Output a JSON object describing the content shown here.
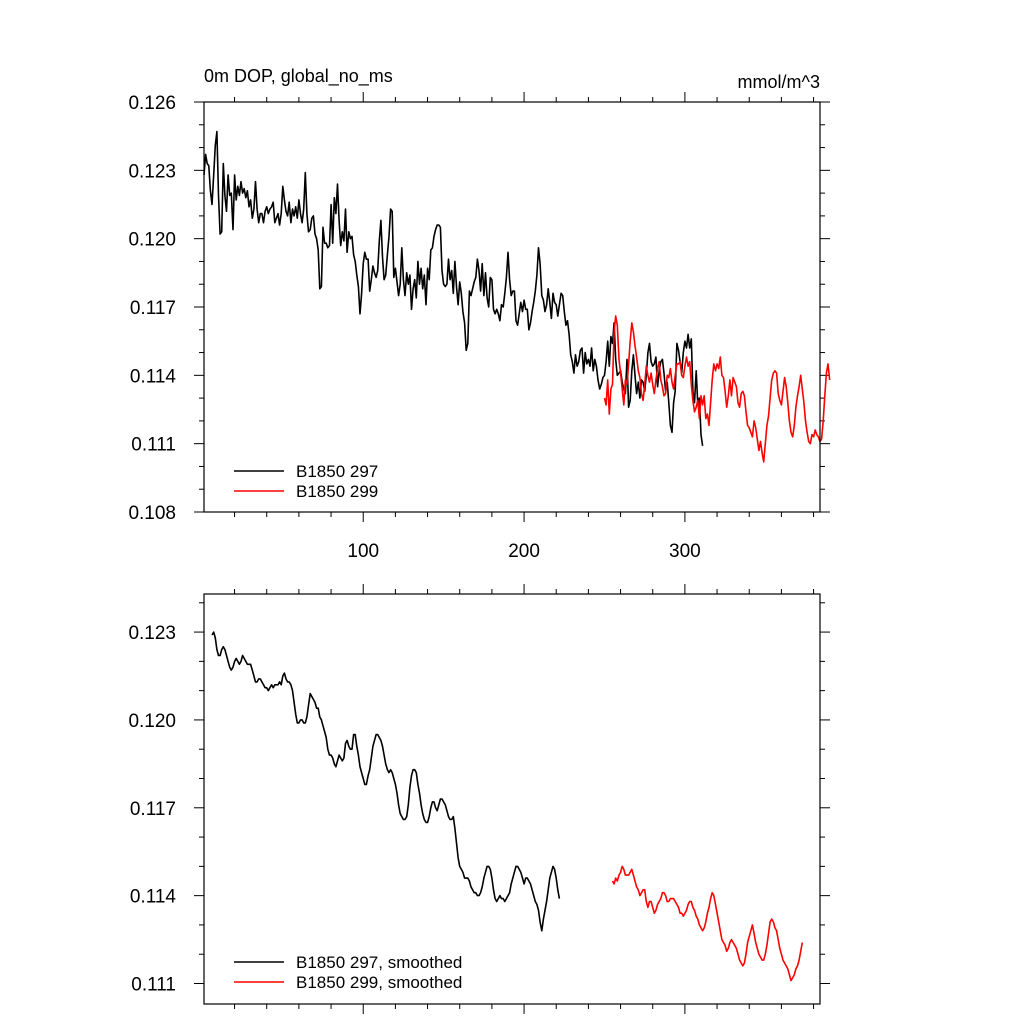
{
  "colors": {
    "run297": "#000000",
    "run299": "#ff0000",
    "axis": "#000000",
    "background": "#ffffff"
  },
  "chart_data": [
    {
      "type": "line",
      "id": "top",
      "title": "0m DOP, global_no_ms",
      "units": "mmol/m^3",
      "xlim": [
        1,
        384
      ],
      "ylim": [
        0.108,
        0.126
      ],
      "yticks": [
        "0.126",
        "0.123",
        "0.120",
        "0.117",
        "0.114",
        "0.111",
        "0.108"
      ],
      "ytick_values": [
        0.126,
        0.123,
        0.12,
        0.117,
        0.114,
        0.111,
        0.108
      ],
      "xticks": [
        "100",
        "200",
        "300"
      ],
      "xtick_values": [
        100,
        200,
        300
      ],
      "grid": false,
      "legend_position": "bottom-left",
      "series": [
        {
          "name": "B1850 297",
          "color": "#000000",
          "x_start": 1,
          "values": [
            0.1228,
            0.1237,
            0.1233,
            0.1232,
            0.1221,
            0.1215,
            0.1228,
            0.1241,
            0.1247,
            0.1219,
            0.1202,
            0.1203,
            0.1233,
            0.1219,
            0.1212,
            0.1228,
            0.1219,
            0.122,
            0.1204,
            0.1228,
            0.1217,
            0.1223,
            0.1219,
            0.1225,
            0.122,
            0.1222,
            0.1218,
            0.1221,
            0.1214,
            0.1217,
            0.1209,
            0.1213,
            0.1225,
            0.1213,
            0.1207,
            0.1211,
            0.1211,
            0.1207,
            0.1212,
            0.1214,
            0.1211,
            0.1213,
            0.1214,
            0.1216,
            0.1207,
            0.1209,
            0.1211,
            0.1206,
            0.1211,
            0.1223,
            0.1217,
            0.1212,
            0.121,
            0.1216,
            0.1207,
            0.1213,
            0.121,
            0.1214,
            0.1209,
            0.1217,
            0.1211,
            0.1207,
            0.1213,
            0.1229,
            0.1211,
            0.1203,
            0.1204,
            0.1209,
            0.121,
            0.1202,
            0.12,
            0.1195,
            0.1178,
            0.1179,
            0.1205,
            0.1198,
            0.1198,
            0.1196,
            0.1197,
            0.1215,
            0.1198,
            0.1218,
            0.1211,
            0.1224,
            0.1208,
            0.1197,
            0.1203,
            0.1199,
            0.1213,
            0.1194,
            0.1203,
            0.12,
            0.1201,
            0.1193,
            0.119,
            0.1184,
            0.1179,
            0.1167,
            0.1176,
            0.1189,
            0.1194,
            0.1191,
            0.1191,
            0.1177,
            0.1182,
            0.1188,
            0.1185,
            0.1183,
            0.1186,
            0.1199,
            0.1208,
            0.1192,
            0.1182,
            0.1184,
            0.1193,
            0.1201,
            0.1213,
            0.1212,
            0.1183,
            0.1187,
            0.1181,
            0.1175,
            0.118,
            0.1196,
            0.1182,
            0.1175,
            0.1185,
            0.118,
            0.1184,
            0.1169,
            0.1178,
            0.1182,
            0.1174,
            0.119,
            0.118,
            0.1187,
            0.1178,
            0.1184,
            0.1171,
            0.1187,
            0.1182,
            0.1195,
            0.1196,
            0.1201,
            0.1204,
            0.1206,
            0.1206,
            0.1205,
            0.1186,
            0.118,
            0.1179,
            0.118,
            0.1191,
            0.1182,
            0.1186,
            0.1176,
            0.119,
            0.1179,
            0.1171,
            0.1181,
            0.1176,
            0.1168,
            0.1163,
            0.1151,
            0.1154,
            0.1177,
            0.1175,
            0.1178,
            0.1181,
            0.1183,
            0.1191,
            0.1186,
            0.1177,
            0.1189,
            0.1175,
            0.1185,
            0.1174,
            0.117,
            0.1183,
            0.1182,
            0.1169,
            0.1167,
            0.1169,
            0.1167,
            0.1164,
            0.1171,
            0.117,
            0.1176,
            0.1183,
            0.1194,
            0.1182,
            0.1175,
            0.1177,
            0.1177,
            0.1164,
            0.1162,
            0.1167,
            0.1172,
            0.1168,
            0.1173,
            0.1169,
            0.1169,
            0.116,
            0.1163,
            0.1168,
            0.1172,
            0.1177,
            0.1184,
            0.1196,
            0.1189,
            0.1175,
            0.1173,
            0.1168,
            0.1171,
            0.1178,
            0.1172,
            0.1165,
            0.1176,
            0.1172,
            0.1171,
            0.1166,
            0.1171,
            0.1176,
            0.1175,
            0.1168,
            0.1162,
            0.1164,
            0.1158,
            0.1149,
            0.1146,
            0.1141,
            0.1149,
            0.1144,
            0.1146,
            0.1151,
            0.1152,
            0.1141,
            0.115,
            0.1145,
            0.1147,
            0.1144,
            0.1152,
            0.1142,
            0.1147,
            0.1144,
            0.1138,
            0.1134,
            0.1136,
            0.1139,
            0.114,
            0.1146,
            0.1155,
            0.1144,
            0.1157,
            0.1154,
            0.1163,
            0.1147,
            0.114,
            0.1141,
            0.1142,
            0.1137,
            0.1134,
            0.1132,
            0.1147,
            0.1126,
            0.1129,
            0.1142,
            0.1149,
            0.114,
            0.1132,
            0.1137,
            0.113,
            0.1138,
            0.1137,
            0.1133,
            0.114,
            0.115,
            0.1154,
            0.1146,
            0.1144,
            0.1145,
            0.1148,
            0.1135,
            0.1142,
            0.1146,
            0.1147,
            0.1141,
            0.1133,
            0.1137,
            0.1128,
            0.1118,
            0.1115,
            0.1128,
            0.1133,
            0.1154,
            0.1151,
            0.1146,
            0.1141,
            0.115,
            0.1155,
            0.1152,
            0.1158,
            0.1152,
            0.1156,
            0.1133,
            0.1128,
            0.1142,
            0.1127,
            0.113,
            0.1114,
            0.1109
          ]
        },
        {
          "name": "B1850 299",
          "color": "#ff0000",
          "x_start": 250,
          "values": [
            0.113,
            0.1127,
            0.1138,
            0.1123,
            0.1134,
            0.1136,
            0.1159,
            0.1166,
            0.1162,
            0.1147,
            0.1141,
            0.1134,
            0.1127,
            0.1138,
            0.1136,
            0.1145,
            0.1155,
            0.1163,
            0.1159,
            0.1153,
            0.1148,
            0.1142,
            0.1139,
            0.1132,
            0.1129,
            0.1136,
            0.1144,
            0.114,
            0.1137,
            0.1141,
            0.1136,
            0.1132,
            0.1138,
            0.1143,
            0.1146,
            0.1138,
            0.1135,
            0.1131,
            0.1132,
            0.114,
            0.1139,
            0.1143,
            0.1137,
            0.1134,
            0.114,
            0.1145,
            0.1145,
            0.1146,
            0.114,
            0.1139,
            0.1144,
            0.1148,
            0.1144,
            0.1146,
            0.1136,
            0.1129,
            0.1124,
            0.1126,
            0.1129,
            0.1121,
            0.1131,
            0.1127,
            0.1131,
            0.1121,
            0.1123,
            0.1118,
            0.1128,
            0.1138,
            0.1145,
            0.1142,
            0.1145,
            0.1143,
            0.1148,
            0.114,
            0.1139,
            0.1133,
            0.1126,
            0.1131,
            0.1138,
            0.1131,
            0.1139,
            0.1137,
            0.1135,
            0.1128,
            0.1126,
            0.1132,
            0.1133,
            0.1131,
            0.1124,
            0.1118,
            0.1117,
            0.1115,
            0.1113,
            0.112,
            0.1117,
            0.1112,
            0.1107,
            0.1111,
            0.1106,
            0.1102,
            0.111,
            0.1118,
            0.1122,
            0.113,
            0.1138,
            0.1141,
            0.1142,
            0.1141,
            0.1132,
            0.1129,
            0.1127,
            0.1133,
            0.1139,
            0.1135,
            0.1128,
            0.112,
            0.1115,
            0.1113,
            0.1118,
            0.1126,
            0.1131,
            0.1135,
            0.114,
            0.1134,
            0.1128,
            0.112,
            0.1115,
            0.1111,
            0.111,
            0.1114,
            0.1113,
            0.1116,
            0.1114,
            0.1113,
            0.1111,
            0.1112,
            0.112,
            0.1131,
            0.1141,
            0.1145,
            0.1138
          ]
        }
      ]
    },
    {
      "type": "line",
      "id": "bottom",
      "xlim": [
        1,
        384
      ],
      "ylim": [
        0.1103,
        0.1243
      ],
      "yticks": [
        "0.123",
        "0.120",
        "0.117",
        "0.114",
        "0.111"
      ],
      "ytick_values": [
        0.123,
        0.12,
        0.117,
        0.114,
        0.111
      ],
      "xtick_values": [
        100,
        200,
        300
      ],
      "grid": false,
      "legend_position": "bottom-left",
      "series": [
        {
          "name": "B1850 297, smoothed",
          "color": "#000000",
          "x_start": 6,
          "values": [
            0.1229,
            0.123,
            0.1228,
            0.1224,
            0.1222,
            0.1222,
            0.1224,
            0.1225,
            0.1224,
            0.1222,
            0.122,
            0.1218,
            0.1217,
            0.1218,
            0.122,
            0.1221,
            0.122,
            0.1219,
            0.122,
            0.1222,
            0.1221,
            0.122,
            0.1219,
            0.1219,
            0.1219,
            0.1217,
            0.1215,
            0.1213,
            0.1213,
            0.1214,
            0.1214,
            0.1213,
            0.1212,
            0.1211,
            0.1211,
            0.121,
            0.1211,
            0.1212,
            0.1211,
            0.1212,
            0.1212,
            0.1212,
            0.1213,
            0.1212,
            0.1215,
            0.1216,
            0.1214,
            0.1213,
            0.1213,
            0.1212,
            0.121,
            0.1206,
            0.1202,
            0.1199,
            0.1199,
            0.12,
            0.12,
            0.1199,
            0.1199,
            0.1201,
            0.1205,
            0.1209,
            0.1208,
            0.1207,
            0.1206,
            0.1204,
            0.1204,
            0.1201,
            0.12,
            0.1198,
            0.1196,
            0.1194,
            0.119,
            0.1188,
            0.1188,
            0.1187,
            0.1185,
            0.1184,
            0.1186,
            0.1188,
            0.1187,
            0.1186,
            0.1187,
            0.1192,
            0.1193,
            0.1191,
            0.119,
            0.119,
            0.1195,
            0.1195,
            0.1191,
            0.1188,
            0.1184,
            0.1182,
            0.118,
            0.1178,
            0.1178,
            0.1181,
            0.1183,
            0.1187,
            0.1191,
            0.1193,
            0.1195,
            0.1195,
            0.1194,
            0.1193,
            0.1191,
            0.1188,
            0.1185,
            0.1183,
            0.1182,
            0.1183,
            0.1182,
            0.118,
            0.1178,
            0.1175,
            0.1171,
            0.1168,
            0.1167,
            0.1166,
            0.1166,
            0.1167,
            0.1171,
            0.1177,
            0.1181,
            0.1183,
            0.1183,
            0.1182,
            0.1178,
            0.1175,
            0.1171,
            0.1168,
            0.1166,
            0.1165,
            0.1165,
            0.1167,
            0.117,
            0.1172,
            0.1172,
            0.117,
            0.1169,
            0.1171,
            0.1173,
            0.1173,
            0.1172,
            0.1171,
            0.1169,
            0.1167,
            0.1166,
            0.1166,
            0.1167,
            0.1163,
            0.1158,
            0.1153,
            0.115,
            0.1149,
            0.1148,
            0.1146,
            0.1146,
            0.1146,
            0.1145,
            0.1143,
            0.1142,
            0.1141,
            0.1141,
            0.114,
            0.114,
            0.1141,
            0.1143,
            0.1146,
            0.1148,
            0.115,
            0.115,
            0.1149,
            0.1146,
            0.1142,
            0.1139,
            0.1138,
            0.1139,
            0.114,
            0.1139,
            0.1139,
            0.1138,
            0.1139,
            0.114,
            0.1141,
            0.1144,
            0.1146,
            0.1148,
            0.115,
            0.115,
            0.1149,
            0.1148,
            0.1146,
            0.1144,
            0.1146,
            0.1146,
            0.1145,
            0.1144,
            0.1142,
            0.114,
            0.1138,
            0.1137,
            0.1135,
            0.1131,
            0.1128,
            0.1132,
            0.1135,
            0.1138,
            0.1142,
            0.1146,
            0.1148,
            0.115,
            0.1149,
            0.1146,
            0.1142,
            0.1139
          ]
        },
        {
          "name": "B1850 299, smoothed",
          "color": "#ff0000",
          "x_start": 255,
          "values": [
            0.1145,
            0.1144,
            0.1146,
            0.1145,
            0.1147,
            0.1148,
            0.115,
            0.1149,
            0.1147,
            0.1147,
            0.1147,
            0.1148,
            0.1149,
            0.1147,
            0.1145,
            0.1143,
            0.1142,
            0.114,
            0.1141,
            0.1142,
            0.1142,
            0.1138,
            0.1136,
            0.1138,
            0.1138,
            0.1136,
            0.1134,
            0.1135,
            0.1137,
            0.1138,
            0.1139,
            0.1141,
            0.1141,
            0.114,
            0.1138,
            0.1138,
            0.1139,
            0.1139,
            0.1139,
            0.1138,
            0.1137,
            0.1136,
            0.1134,
            0.1134,
            0.1133,
            0.1134,
            0.1135,
            0.1137,
            0.1138,
            0.1138,
            0.1136,
            0.1135,
            0.1133,
            0.1132,
            0.113,
            0.1129,
            0.1128,
            0.1129,
            0.1131,
            0.1134,
            0.1136,
            0.1139,
            0.1141,
            0.114,
            0.1137,
            0.1134,
            0.1131,
            0.1128,
            0.1125,
            0.1124,
            0.1123,
            0.1121,
            0.1122,
            0.1124,
            0.1125,
            0.1124,
            0.1123,
            0.1122,
            0.112,
            0.1118,
            0.1117,
            0.1116,
            0.1117,
            0.112,
            0.1124,
            0.1126,
            0.1128,
            0.113,
            0.1127,
            0.1124,
            0.1122,
            0.112,
            0.1119,
            0.1118,
            0.1118,
            0.112,
            0.1123,
            0.1127,
            0.1131,
            0.1132,
            0.1131,
            0.1129,
            0.1128,
            0.1125,
            0.1122,
            0.112,
            0.1118,
            0.1117,
            0.1116,
            0.1115,
            0.1113,
            0.1111,
            0.1112,
            0.1113,
            0.1115,
            0.1116,
            0.1118,
            0.1121,
            0.1124
          ]
        }
      ]
    }
  ]
}
